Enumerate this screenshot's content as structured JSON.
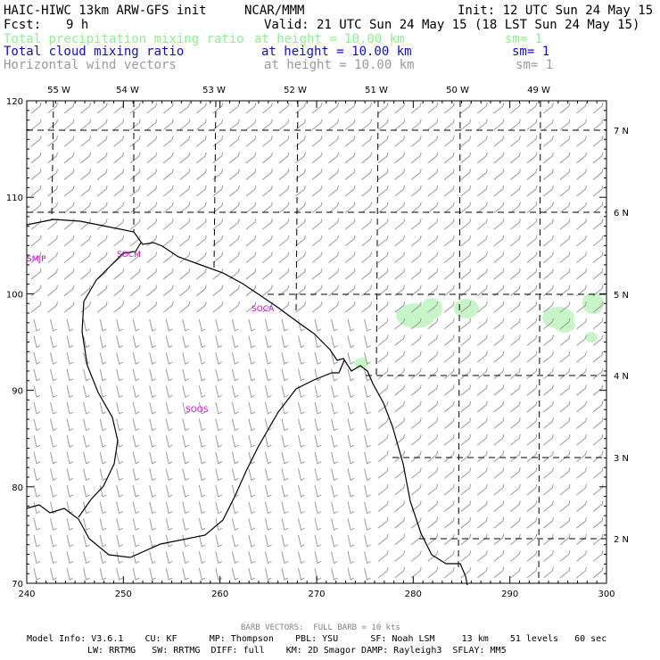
{
  "header": {
    "title_left": "HAIC-HIWC 13km ARW-GFS init",
    "org": "NCAR/MMM",
    "init": "Init: 12 UTC Sun 24 May 15",
    "fcst_label": "Fcst:",
    "fcst_value": "9 h",
    "valid": "Valid: 21 UTC Sun 24 May 15 (18 LST Sun 24 May 15)"
  },
  "fields": [
    {
      "name": "Total precipitation mixing ratio",
      "height": "at height = 10.00 km",
      "sm": "sm= 1",
      "color": "#90ee90"
    },
    {
      "name": "Total cloud mixing ratio",
      "height": "at height = 10.00 km",
      "sm": "sm= 1",
      "color": "#1010b0"
    },
    {
      "name": "Horizontal wind vectors",
      "height": "at height = 10.00 km",
      "sm": "sm= 1",
      "color": "#9a9a9a"
    }
  ],
  "axes": {
    "x_ticks": [
      "240",
      "250",
      "260",
      "270",
      "280",
      "290",
      "300"
    ],
    "y_ticks": [
      "70",
      "80",
      "90",
      "100",
      "110",
      "120"
    ],
    "lon_labels": [
      "55 W",
      "54 W",
      "53 W",
      "52 W",
      "51 W",
      "50 W",
      "49 W"
    ],
    "lat_labels": [
      "7 N",
      "6 N",
      "5 N",
      "4 N",
      "3 N",
      "2 N"
    ]
  },
  "stations": [
    "SMJP",
    "SOCM",
    "SOCA",
    "SOOS"
  ],
  "footer": {
    "barb_note": "BARB VECTORS:  FULL BARB = 10 kts",
    "line1": "Model Info: V3.6.1    CU: KF      MP: Thompson    PBL: YSU      SF: Noah LSM     13 km    51 levels   60 sec",
    "line2": "LW: RRTMG   SW: RRTMG  DIFF: full    KM: 2D Smagor DAMP: Rayleigh3  SFLAY: MM5"
  },
  "colors": {
    "coast": "#000000",
    "barb": "#9a9a9a",
    "precip": "#c8f5c8"
  }
}
